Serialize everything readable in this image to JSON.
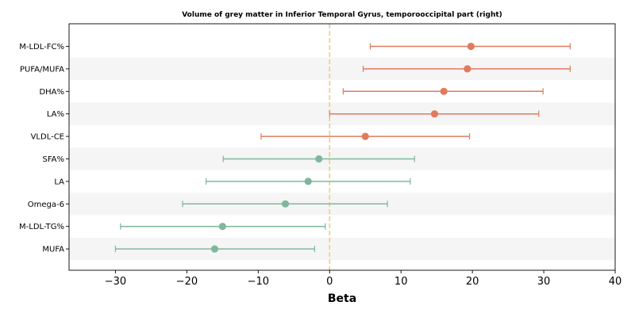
{
  "chart_data": {
    "type": "forest",
    "title": "Volume of grey matter in Inferior Temporal Gyrus, temporooccipital part (right)",
    "xlabel": "Beta",
    "xlim": [
      -36.5,
      40
    ],
    "xticks": [
      -30,
      -20,
      -10,
      0,
      10,
      20,
      30,
      40
    ],
    "xtick_labels": [
      "−30",
      "−20",
      "−10",
      "0",
      "10",
      "20",
      "30",
      "40"
    ],
    "reference_line": 0,
    "grid": false,
    "colors": {
      "positive": "#e07b5f",
      "negative": "#7fb79c",
      "reference": "#f0c890",
      "band": "#f5f5f5"
    },
    "items": [
      {
        "label": "M-LDL-FC%",
        "beta": 19.8,
        "lower": 5.7,
        "upper": 33.7
      },
      {
        "label": "PUFA/MUFA",
        "beta": 19.3,
        "lower": 4.7,
        "upper": 33.7
      },
      {
        "label": "DHA%",
        "beta": 16.0,
        "lower": 1.9,
        "upper": 29.9
      },
      {
        "label": "LA%",
        "beta": 14.7,
        "lower": 0.0,
        "upper": 29.3
      },
      {
        "label": "VLDL-CE",
        "beta": 5.0,
        "lower": -9.6,
        "upper": 19.6
      },
      {
        "label": "SFA%",
        "beta": -1.5,
        "lower": -14.9,
        "upper": 11.9
      },
      {
        "label": "LA",
        "beta": -3.0,
        "lower": -17.3,
        "upper": 11.3
      },
      {
        "label": "Omega-6",
        "beta": -6.2,
        "lower": -20.6,
        "upper": 8.1
      },
      {
        "label": "M-LDL-TG%",
        "beta": -15.0,
        "lower": -29.3,
        "upper": -0.6
      },
      {
        "label": "MUFA",
        "beta": -16.1,
        "lower": -30.0,
        "upper": -2.1
      }
    ]
  }
}
